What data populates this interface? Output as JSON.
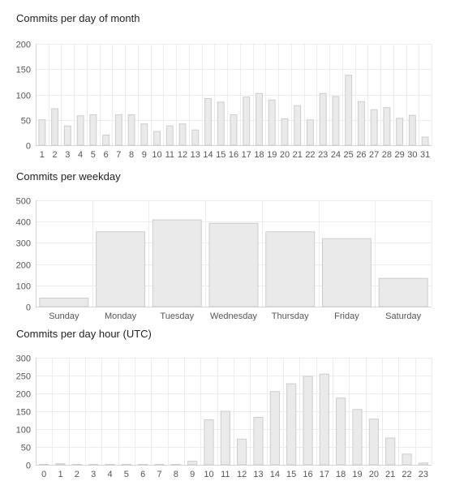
{
  "chart_data": [
    {
      "type": "bar",
      "title": "Commits per day of month",
      "xlabel": "",
      "ylabel": "",
      "ylim": [
        0,
        200
      ],
      "yticks": [
        0,
        50,
        100,
        150,
        200
      ],
      "grid": true,
      "legend": "none",
      "bar_fill": "#eaeaea",
      "bar_stroke": "#cccccc",
      "categories": [
        "1",
        "2",
        "3",
        "4",
        "5",
        "6",
        "7",
        "8",
        "9",
        "10",
        "11",
        "12",
        "13",
        "14",
        "15",
        "16",
        "17",
        "18",
        "19",
        "20",
        "21",
        "22",
        "23",
        "24",
        "25",
        "26",
        "27",
        "28",
        "29",
        "30",
        "31"
      ],
      "values": [
        50,
        72,
        38,
        58,
        60,
        20,
        60,
        60,
        42,
        27,
        38,
        42,
        30,
        92,
        85,
        60,
        95,
        102,
        89,
        52,
        78,
        50,
        102,
        96,
        138,
        86,
        70,
        74,
        53,
        59,
        16
      ]
    },
    {
      "type": "bar",
      "title": "Commits per weekday",
      "xlabel": "",
      "ylabel": "",
      "ylim": [
        0,
        500
      ],
      "yticks": [
        0,
        100,
        200,
        300,
        400,
        500
      ],
      "grid": true,
      "legend": "none",
      "bar_fill": "#eaeaea",
      "bar_stroke": "#cccccc",
      "categories": [
        "Sunday",
        "Monday",
        "Tuesday",
        "Wednesday",
        "Thursday",
        "Friday",
        "Saturday"
      ],
      "values": [
        40,
        352,
        408,
        392,
        352,
        320,
        133
      ]
    },
    {
      "type": "bar",
      "title": "Commits per day hour (UTC)",
      "xlabel": "",
      "ylabel": "",
      "ylim": [
        0,
        300
      ],
      "yticks": [
        0,
        50,
        100,
        150,
        200,
        250,
        300
      ],
      "grid": true,
      "legend": "none",
      "bar_fill": "#eaeaea",
      "bar_stroke": "#cccccc",
      "categories": [
        "0",
        "1",
        "2",
        "3",
        "4",
        "5",
        "6",
        "7",
        "8",
        "9",
        "10",
        "11",
        "12",
        "13",
        "14",
        "15",
        "16",
        "17",
        "18",
        "19",
        "20",
        "21",
        "22",
        "23"
      ],
      "values": [
        1,
        3,
        1,
        1,
        1,
        1,
        1,
        1,
        1,
        10,
        126,
        150,
        72,
        133,
        205,
        227,
        248,
        254,
        187,
        155,
        128,
        75,
        30,
        5
      ]
    }
  ]
}
